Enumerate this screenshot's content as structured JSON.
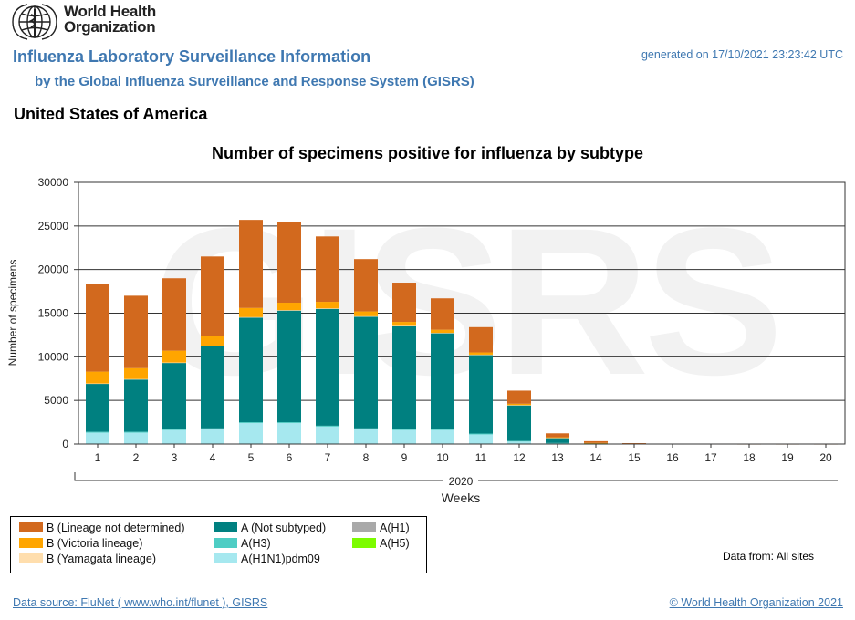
{
  "header": {
    "org_line1": "World Health",
    "org_line2": "Organization",
    "report_title": "Influenza Laboratory Surveillance Information",
    "subtitle": "by the Global Influenza Surveillance and Response System (GISRS)",
    "generated": "generated on 17/10/2021 23:23:42 UTC",
    "country": "United States of America"
  },
  "chart_data": {
    "type": "bar",
    "stacked": true,
    "title": "Number of specimens positive for influenza by subtype",
    "xlabel": "Weeks",
    "xgroup_label": "2020",
    "ylabel": "Number of specimens",
    "ylim": [
      0,
      30000
    ],
    "yticks": [
      0,
      5000,
      10000,
      15000,
      20000,
      25000,
      30000
    ],
    "grid": true,
    "watermark": "GISRS",
    "categories": [
      "1",
      "2",
      "3",
      "4",
      "5",
      "6",
      "7",
      "8",
      "9",
      "10",
      "11",
      "12",
      "13",
      "14",
      "15",
      "16",
      "17",
      "18",
      "19",
      "20"
    ],
    "series": [
      {
        "name": "A(H1N1)pdm09",
        "color": "#a6e8ef",
        "values": [
          1300,
          1300,
          1600,
          1700,
          2400,
          2400,
          2000,
          1700,
          1600,
          1600,
          1100,
          300,
          100,
          0,
          0,
          0,
          0,
          0,
          0,
          0
        ]
      },
      {
        "name": "A(H3)",
        "color": "#4ecdc4",
        "values": [
          100,
          100,
          100,
          100,
          100,
          100,
          100,
          100,
          100,
          100,
          100,
          50,
          20,
          5,
          0,
          0,
          0,
          0,
          0,
          0
        ]
      },
      {
        "name": "A(Not subtyped)",
        "color": "#008080",
        "values": [
          5500,
          6000,
          7600,
          9400,
          12000,
          12800,
          13400,
          12800,
          11800,
          11000,
          9000,
          4100,
          600,
          100,
          30,
          10,
          0,
          0,
          0,
          0
        ]
      },
      {
        "name": "A(H1)",
        "color": "#a9a9a9",
        "values": [
          0,
          0,
          0,
          0,
          0,
          0,
          0,
          0,
          0,
          0,
          0,
          0,
          0,
          0,
          0,
          0,
          0,
          0,
          0,
          0
        ]
      },
      {
        "name": "A(H5)",
        "color": "#7cfc00",
        "values": [
          0,
          0,
          0,
          0,
          0,
          0,
          0,
          0,
          0,
          0,
          0,
          0,
          0,
          0,
          0,
          0,
          0,
          0,
          0,
          0
        ]
      },
      {
        "name": "B (Yamagata lineage)",
        "color": "#ffdead",
        "values": [
          50,
          50,
          50,
          50,
          50,
          50,
          50,
          50,
          50,
          50,
          50,
          20,
          5,
          0,
          0,
          0,
          0,
          0,
          0,
          0
        ]
      },
      {
        "name": "B (Victoria lineage)",
        "color": "#ffa500",
        "values": [
          1350,
          1250,
          1350,
          1150,
          1050,
          850,
          750,
          550,
          450,
          350,
          250,
          150,
          50,
          20,
          0,
          0,
          0,
          0,
          0,
          0
        ]
      },
      {
        "name": "B (Lineage not determined)",
        "color": "#d2691e",
        "values": [
          10000,
          8300,
          8300,
          9100,
          10100,
          9300,
          7500,
          6000,
          4500,
          3600,
          2900,
          1500,
          450,
          200,
          70,
          40,
          10,
          5,
          5,
          5
        ]
      }
    ]
  },
  "legend": {
    "columns": [
      [
        "B (Lineage not determined)",
        "B (Victoria lineage)",
        "B (Yamagata lineage)"
      ],
      [
        "A (Not subtyped)",
        "A(H3)",
        "A(H1N1)pdm09"
      ],
      [
        "A(H1)",
        "A(H5)"
      ]
    ],
    "colors": [
      [
        "#d2691e",
        "#ffa500",
        "#ffdead"
      ],
      [
        "#008080",
        "#4ecdc4",
        "#a6e8ef"
      ],
      [
        "#a9a9a9",
        "#7cfc00"
      ]
    ]
  },
  "footer": {
    "data_from": "Data from: All sites",
    "data_source": "Data source: FluNet ( www.who.int/flunet ), GISRS",
    "copyright": "© World Health Organization 2021"
  }
}
